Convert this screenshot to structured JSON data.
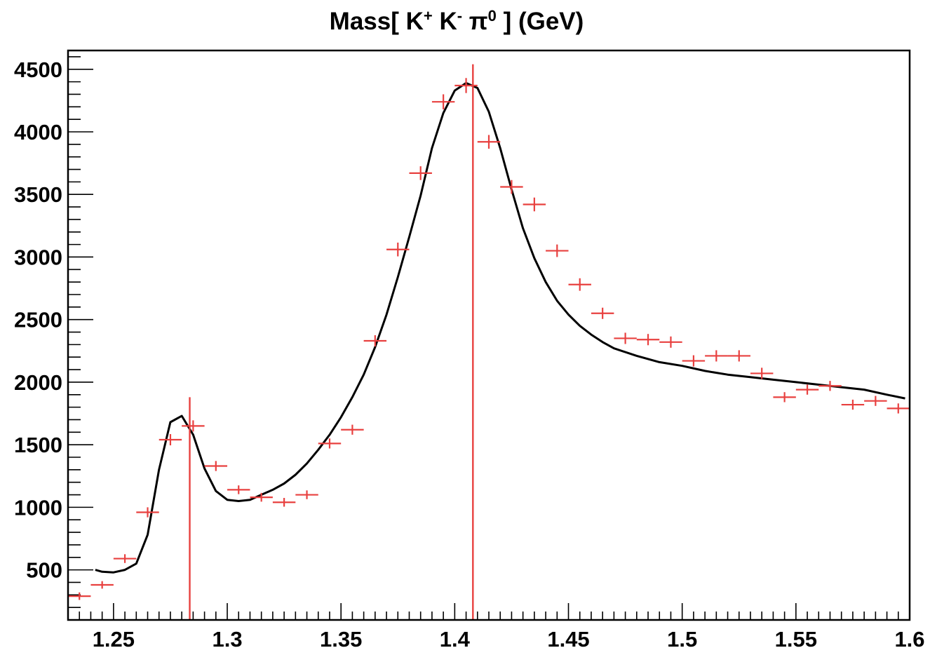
{
  "chart_data": {
    "type": "scatter",
    "title": "Mass[ K⁺ K⁻ π⁰ ] (GeV)",
    "title_parts": {
      "prefix": "Mass[ K",
      "sup1": "+",
      "mid1": " K",
      "sup2": "-",
      "mid2": " π",
      "sup3": "0",
      "suffix": " ] (GeV)"
    },
    "xlabel": "",
    "ylabel": "",
    "xlim": [
      1.23,
      1.6
    ],
    "ylim": [
      100,
      4650
    ],
    "xticks": [
      1.25,
      1.3,
      1.35,
      1.4,
      1.45,
      1.5,
      1.55,
      1.6
    ],
    "xtick_labels": [
      "1.25",
      "1.3",
      "1.35",
      "1.4",
      "1.45",
      "1.5",
      "1.55",
      "1.6"
    ],
    "yticks": [
      500,
      1000,
      1500,
      2000,
      2500,
      3000,
      3500,
      4000,
      4500
    ],
    "ytick_labels": [
      "500",
      "1000",
      "1500",
      "2000",
      "2500",
      "3000",
      "3500",
      "4000",
      "4500"
    ],
    "grid": false,
    "colors": {
      "data": "#e8403f",
      "fit": "#000000",
      "markers": "#e8403f"
    },
    "series": [
      {
        "kind": "histogram-points",
        "bin_width": 0.01,
        "x": [
          1.235,
          1.245,
          1.255,
          1.265,
          1.275,
          1.285,
          1.295,
          1.305,
          1.315,
          1.325,
          1.335,
          1.345,
          1.355,
          1.365,
          1.375,
          1.385,
          1.395,
          1.405,
          1.415,
          1.425,
          1.435,
          1.445,
          1.455,
          1.465,
          1.475,
          1.485,
          1.495,
          1.505,
          1.515,
          1.525,
          1.535,
          1.545,
          1.555,
          1.565,
          1.575,
          1.585,
          1.595
        ],
        "y": [
          290,
          380,
          590,
          960,
          1540,
          1650,
          1330,
          1140,
          1080,
          1040,
          1100,
          1510,
          1620,
          2330,
          3060,
          3670,
          4240,
          4370,
          3920,
          3560,
          3420,
          3050,
          2780,
          2550,
          2350,
          2340,
          2320,
          2170,
          2210,
          2210,
          2070,
          1880,
          1940,
          1970,
          1820,
          1850,
          1790
        ],
        "yerr": [
          30,
          30,
          35,
          40,
          45,
          45,
          40,
          35,
          35,
          35,
          35,
          40,
          40,
          45,
          55,
          55,
          60,
          60,
          55,
          55,
          55,
          50,
          50,
          45,
          45,
          45,
          45,
          45,
          45,
          45,
          45,
          40,
          40,
          40,
          40,
          40,
          40
        ]
      },
      {
        "kind": "fit-curve",
        "x": [
          1.242,
          1.245,
          1.25,
          1.255,
          1.26,
          1.265,
          1.27,
          1.275,
          1.28,
          1.285,
          1.29,
          1.295,
          1.3,
          1.305,
          1.31,
          1.315,
          1.32,
          1.325,
          1.33,
          1.335,
          1.34,
          1.345,
          1.35,
          1.355,
          1.36,
          1.365,
          1.37,
          1.375,
          1.38,
          1.385,
          1.39,
          1.395,
          1.4,
          1.405,
          1.41,
          1.415,
          1.42,
          1.425,
          1.43,
          1.435,
          1.44,
          1.445,
          1.45,
          1.455,
          1.46,
          1.465,
          1.47,
          1.48,
          1.49,
          1.5,
          1.51,
          1.52,
          1.53,
          1.54,
          1.55,
          1.56,
          1.57,
          1.58,
          1.59,
          1.598
        ],
        "y": [
          500,
          485,
          480,
          500,
          550,
          780,
          1300,
          1680,
          1730,
          1580,
          1310,
          1130,
          1060,
          1050,
          1060,
          1100,
          1140,
          1190,
          1260,
          1350,
          1460,
          1580,
          1720,
          1880,
          2060,
          2280,
          2540,
          2840,
          3160,
          3490,
          3870,
          4150,
          4330,
          4390,
          4350,
          4160,
          3870,
          3540,
          3230,
          2990,
          2800,
          2650,
          2540,
          2450,
          2380,
          2320,
          2270,
          2210,
          2160,
          2130,
          2090,
          2060,
          2040,
          2020,
          2000,
          1980,
          1960,
          1940,
          1900,
          1870
        ]
      },
      {
        "kind": "marker-lines",
        "x": [
          1.2835,
          1.408
        ],
        "ytop": [
          1880,
          4540
        ]
      }
    ]
  }
}
